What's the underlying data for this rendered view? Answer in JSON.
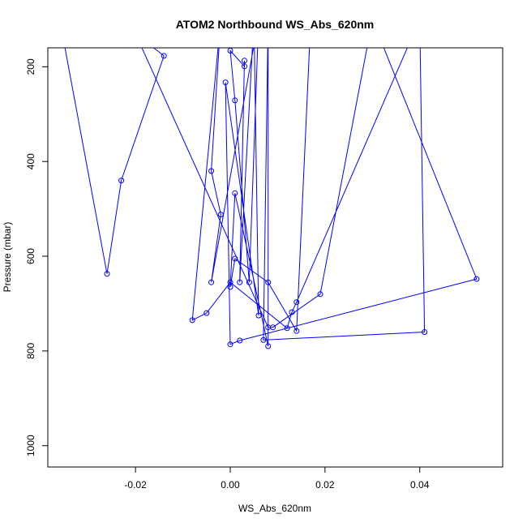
{
  "chart_data": {
    "type": "line",
    "title": "ATOM2 Northbound WS_Abs_620nm",
    "xlabel": "WS_Abs_620nm",
    "ylabel": "Pressure (mbar)",
    "xlim": [
      -0.0385,
      0.0575
    ],
    "ylim": [
      1045,
      160
    ],
    "y_reversed": true,
    "x_ticks": [
      -0.02,
      0.0,
      0.02,
      0.04
    ],
    "x_tick_labels": [
      "-0.02",
      "0.00",
      "0.02",
      "0.04"
    ],
    "y_ticks": [
      200,
      400,
      600,
      800,
      1000
    ],
    "y_tick_labels": [
      "200",
      "400",
      "600",
      "800",
      "1000"
    ],
    "grid": false,
    "legend": "none",
    "series": [
      {
        "color": "#0000ff",
        "marker": "open-circle",
        "points": [
          [
            -0.036,
            100
          ],
          [
            -0.026,
            637
          ],
          [
            -0.023,
            440
          ],
          [
            -0.014,
            177
          ],
          [
            -0.02,
            130
          ],
          [
            0.008,
            750
          ],
          [
            0.009,
            750
          ],
          [
            0.019,
            680
          ],
          [
            0.03,
            100
          ],
          [
            0.052,
            648
          ],
          [
            0.002,
            778
          ],
          [
            0.0,
            786
          ],
          [
            -0.001,
            233
          ],
          [
            0.006,
            725
          ],
          [
            0.005,
            100
          ],
          [
            0.002,
            655
          ],
          [
            0.003,
            187
          ],
          [
            0.003,
            199
          ],
          [
            0.0,
            166
          ],
          [
            0.001,
            271
          ],
          [
            0.004,
            655
          ],
          [
            0.006,
            100
          ],
          [
            -0.004,
            655
          ],
          [
            -0.002,
            512
          ],
          [
            -0.004,
            420
          ],
          [
            -0.002,
            100
          ],
          [
            -0.008,
            735
          ],
          [
            -0.005,
            720
          ],
          [
            0.0,
            655
          ],
          [
            0.012,
            752
          ],
          [
            0.013,
            718
          ],
          [
            0.014,
            697
          ],
          [
            0.04,
            100
          ],
          [
            0.041,
            760
          ],
          [
            0.007,
            777
          ],
          [
            0.008,
            100
          ],
          [
            0.008,
            790
          ],
          [
            0.001,
            467
          ],
          [
            0.0,
            665
          ],
          [
            0.001,
            605
          ],
          [
            0.008,
            655
          ],
          [
            0.014,
            758
          ],
          [
            0.017,
            100
          ]
        ]
      }
    ]
  }
}
